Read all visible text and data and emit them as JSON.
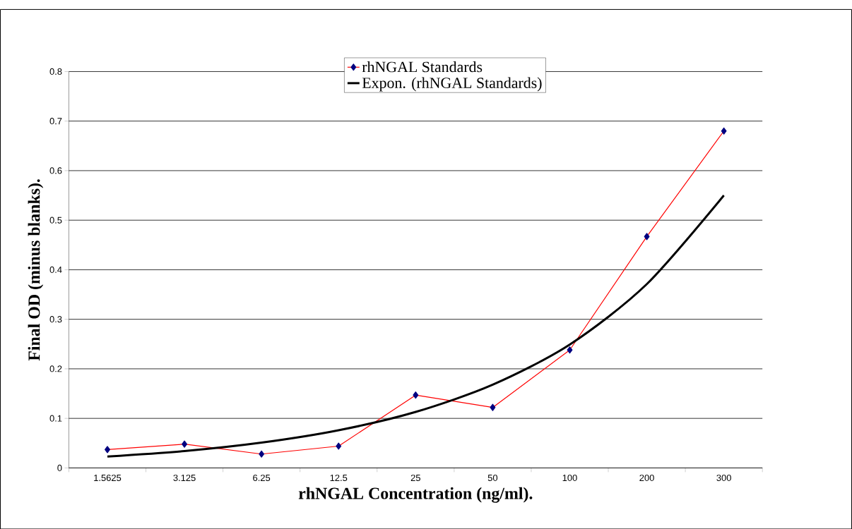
{
  "chart_data": {
    "type": "line",
    "xlabel": "rhNGAL Concentration (ng/ml).",
    "ylabel": "Final OD (minus blanks).",
    "categories": [
      "1.5625",
      "3.125",
      "6.25",
      "12.5",
      "25",
      "50",
      "100",
      "200",
      "300"
    ],
    "series": [
      {
        "name": "rhNGAL Standards",
        "color": "#ff0000",
        "marker": "diamond",
        "values": [
          0.037,
          0.048,
          0.028,
          0.044,
          0.147,
          0.122,
          0.238,
          0.467,
          0.68
        ]
      },
      {
        "name": "Expon. (rhNGAL Standards)",
        "color": "#000000",
        "marker": "none",
        "values": [
          0.023,
          0.034,
          0.051,
          0.076,
          0.113,
          0.168,
          0.249,
          0.371,
          0.55
        ]
      }
    ],
    "ylim": [
      0,
      0.8
    ],
    "yticks": [
      0,
      0.1,
      0.2,
      0.3,
      0.4,
      0.5,
      0.6,
      0.7,
      0.8
    ],
    "grid": "y",
    "legend": "top"
  }
}
